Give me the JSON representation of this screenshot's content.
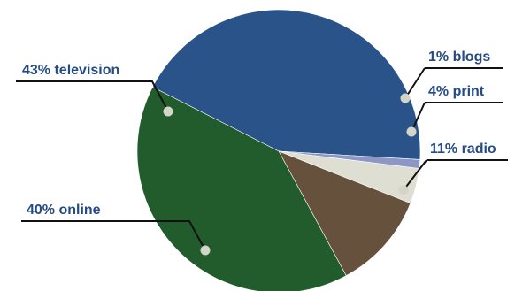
{
  "chart_data": {
    "type": "pie",
    "slices": [
      {
        "label": "43% television",
        "category": "television",
        "value": 43,
        "color": "#2a5489"
      },
      {
        "label": "1% blogs",
        "category": "blogs",
        "value": 1,
        "color": "#8d97c6"
      },
      {
        "label": "4% print",
        "category": "print",
        "value": 4,
        "color": "#dedfd2"
      },
      {
        "label": "11% radio",
        "category": "radio",
        "value": 11,
        "color": "#66513c"
      },
      {
        "label": "40% online",
        "category": "online",
        "value": 40,
        "color": "#225c2d"
      }
    ],
    "colors": {
      "label_text": "#254a86",
      "leader_line": "#111111",
      "dot": "#d4d4c8"
    }
  }
}
